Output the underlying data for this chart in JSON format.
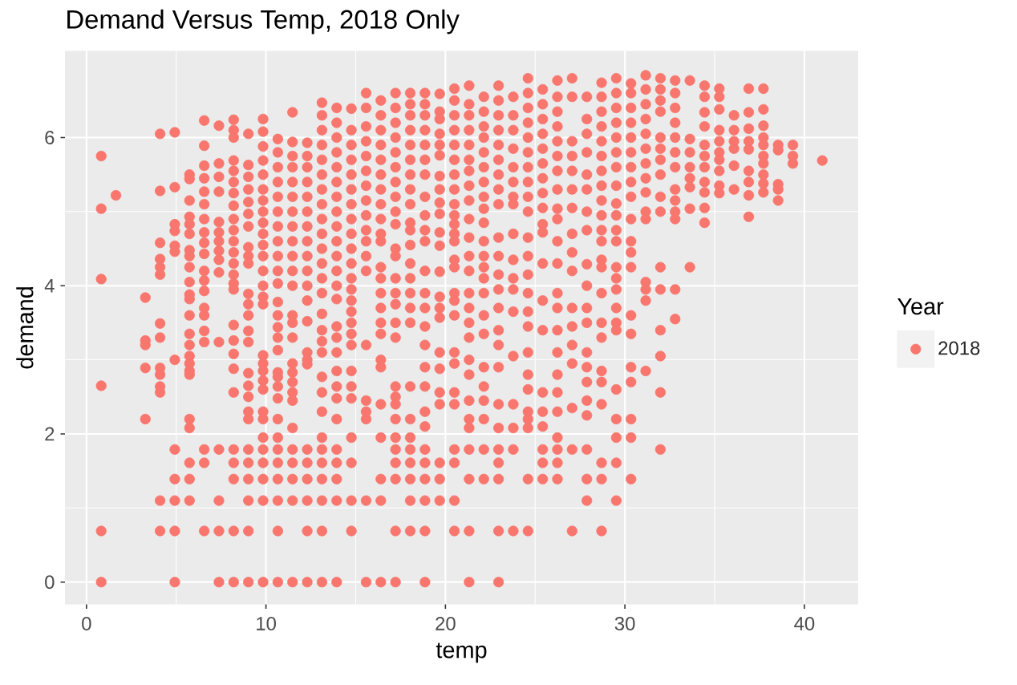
{
  "chart_data": {
    "type": "scatter",
    "title": "Demand Versus Temp, 2018 Only",
    "xlabel": "temp",
    "ylabel": "demand",
    "legend_title": "Year",
    "xlim": [
      -1.2,
      43.0
    ],
    "ylim": [
      -0.3,
      7.17
    ],
    "xticks": [
      0,
      10,
      20,
      30,
      40
    ],
    "yticks": [
      0,
      2,
      4,
      6
    ],
    "grid": true,
    "legend": "right",
    "marker": "circle",
    "x": [
      0.82,
      0.82,
      0.82,
      0.82,
      0.82,
      0.82,
      1.64,
      3.28,
      3.28,
      3.28,
      3.28,
      3.28,
      4.1,
      4.1,
      4.1,
      4.1,
      4.1,
      4.1,
      4.1,
      4.1,
      4.1,
      4.1,
      4.1,
      4.1,
      4.1,
      4.1,
      4.92,
      4.92,
      4.92,
      4.92,
      4.92,
      4.92,
      4.92,
      4.92,
      4.92,
      4.92,
      4.92,
      4.92,
      5.74,
      5.74,
      5.74,
      5.74,
      5.74,
      5.74,
      5.74,
      5.74,
      5.74,
      5.74,
      5.74,
      5.74,
      5.74,
      5.74,
      5.74,
      5.74,
      5.74,
      5.74,
      5.74,
      5.74,
      5.74,
      5.74,
      5.74,
      5.74,
      6.56,
      6.56,
      6.56,
      6.56,
      6.56,
      6.56,
      6.56,
      6.56,
      6.56,
      6.56,
      6.56,
      6.56,
      6.56,
      6.56,
      6.56,
      6.56,
      6.56,
      6.56,
      6.56,
      6.56,
      7.38,
      7.38,
      7.38,
      7.38,
      7.38,
      7.38,
      7.38,
      7.38,
      7.38,
      7.38,
      7.38,
      7.38,
      7.38,
      7.38,
      7.38,
      8.2,
      8.2,
      8.2,
      8.2,
      8.2,
      8.2,
      8.2,
      8.2,
      8.2,
      8.2,
      8.2,
      8.2,
      8.2,
      8.2,
      8.2,
      8.2,
      8.2,
      8.2,
      8.2,
      8.2,
      8.2,
      8.2,
      8.2,
      8.2,
      8.2,
      8.2,
      9.02,
      9.02,
      9.02,
      9.02,
      9.02,
      9.02,
      9.02,
      9.02,
      9.02,
      9.02,
      9.02,
      9.02,
      9.02,
      9.02,
      9.02,
      9.02,
      9.02,
      9.02,
      9.02,
      9.02,
      9.02,
      9.02,
      9.02,
      9.02,
      9.02,
      9.02,
      9.84,
      9.84,
      9.84,
      9.84,
      9.84,
      9.84,
      9.84,
      9.84,
      9.84,
      9.84,
      9.84,
      9.84,
      9.84,
      9.84,
      9.84,
      9.84,
      9.84,
      9.84,
      9.84,
      9.84,
      9.84,
      9.84,
      9.84,
      9.84,
      9.84,
      9.84,
      9.84,
      9.84,
      9.84,
      10.66,
      10.66,
      10.66,
      10.66,
      10.66,
      10.66,
      10.66,
      10.66,
      10.66,
      10.66,
      10.66,
      10.66,
      10.66,
      10.66,
      10.66,
      10.66,
      10.66,
      10.66,
      10.66,
      10.66,
      10.66,
      10.66,
      10.66,
      10.66,
      10.66,
      10.66,
      10.66,
      10.66,
      11.48,
      11.48,
      11.48,
      11.48,
      11.48,
      11.48,
      11.48,
      11.48,
      11.48,
      11.48,
      11.48,
      11.48,
      11.48,
      11.48,
      11.48,
      11.48,
      11.48,
      11.48,
      11.48,
      11.48,
      11.48,
      11.48,
      11.48,
      11.48,
      11.48,
      11.48,
      12.3,
      12.3,
      12.3,
      12.3,
      12.3,
      12.3,
      12.3,
      12.3,
      12.3,
      12.3,
      12.3,
      12.3,
      12.3,
      12.3,
      12.3,
      12.3,
      12.3,
      12.3,
      12.3,
      12.3,
      12.3,
      12.3,
      13.12,
      13.12,
      13.12,
      13.12,
      13.12,
      13.12,
      13.12,
      13.12,
      13.12,
      13.12,
      13.12,
      13.12,
      13.12,
      13.12,
      13.12,
      13.12,
      13.12,
      13.12,
      13.12,
      13.12,
      13.12,
      13.12,
      13.12,
      13.12,
      13.12,
      13.12,
      13.12,
      13.12,
      13.94,
      13.94,
      13.94,
      13.94,
      13.94,
      13.94,
      13.94,
      13.94,
      13.94,
      13.94,
      13.94,
      13.94,
      13.94,
      13.94,
      13.94,
      13.94,
      13.94,
      13.94,
      13.94,
      13.94,
      13.94,
      13.94,
      13.94,
      13.94,
      13.94,
      13.94,
      14.76,
      14.76,
      14.76,
      14.76,
      14.76,
      14.76,
      14.76,
      14.76,
      14.76,
      14.76,
      14.76,
      14.76,
      14.76,
      14.76,
      14.76,
      14.76,
      14.76,
      14.76,
      14.76,
      14.76,
      14.76,
      14.76,
      14.76,
      14.76,
      14.76,
      15.58,
      15.58,
      15.58,
      15.58,
      15.58,
      15.58,
      15.58,
      15.58,
      15.58,
      15.58,
      15.58,
      15.58,
      15.58,
      15.58,
      15.58,
      15.58,
      15.58,
      15.58,
      15.58,
      16.4,
      16.4,
      16.4,
      16.4,
      16.4,
      16.4,
      16.4,
      16.4,
      16.4,
      16.4,
      16.4,
      16.4,
      16.4,
      16.4,
      16.4,
      16.4,
      16.4,
      16.4,
      16.4,
      16.4,
      16.4,
      16.4,
      16.4,
      16.4,
      17.22,
      17.22,
      17.22,
      17.22,
      17.22,
      17.22,
      17.22,
      17.22,
      17.22,
      17.22,
      17.22,
      17.22,
      17.22,
      17.22,
      17.22,
      17.22,
      17.22,
      17.22,
      17.22,
      17.22,
      17.22,
      17.22,
      17.22,
      17.22,
      17.22,
      17.22,
      17.22,
      18.04,
      18.04,
      18.04,
      18.04,
      18.04,
      18.04,
      18.04,
      18.04,
      18.04,
      18.04,
      18.04,
      18.04,
      18.04,
      18.04,
      18.04,
      18.04,
      18.04,
      18.04,
      18.04,
      18.04,
      18.04,
      18.04,
      18.04,
      18.04,
      18.04,
      18.86,
      18.86,
      18.86,
      18.86,
      18.86,
      18.86,
      18.86,
      18.86,
      18.86,
      18.86,
      18.86,
      18.86,
      18.86,
      18.86,
      18.86,
      18.86,
      18.86,
      18.86,
      18.86,
      18.86,
      18.86,
      18.86,
      18.86,
      18.86,
      18.86,
      18.86,
      19.68,
      19.68,
      19.68,
      19.68,
      19.68,
      19.68,
      19.68,
      19.68,
      19.68,
      19.68,
      19.68,
      19.68,
      19.68,
      19.68,
      19.68,
      19.68,
      19.68,
      19.68,
      19.68,
      19.68,
      19.68,
      19.68,
      19.68,
      20.5,
      20.5,
      20.5,
      20.5,
      20.5,
      20.5,
      20.5,
      20.5,
      20.5,
      20.5,
      20.5,
      20.5,
      20.5,
      20.5,
      20.5,
      20.5,
      20.5,
      20.5,
      20.5,
      20.5,
      20.5,
      20.5,
      20.5,
      20.5,
      20.5,
      20.5,
      21.32,
      21.32,
      21.32,
      21.32,
      21.32,
      21.32,
      21.32,
      21.32,
      21.32,
      21.32,
      21.32,
      21.32,
      21.32,
      21.32,
      21.32,
      21.32,
      21.32,
      21.32,
      21.32,
      21.32,
      21.32,
      21.32,
      21.32,
      21.32,
      21.32,
      21.32,
      22.14,
      22.14,
      22.14,
      22.14,
      22.14,
      22.14,
      22.14,
      22.14,
      22.14,
      22.14,
      22.14,
      22.14,
      22.14,
      22.14,
      22.14,
      22.14,
      22.14,
      22.14,
      22.14,
      22.14,
      22.14,
      22.14,
      22.14,
      22.96,
      22.96,
      22.96,
      22.96,
      22.96,
      22.96,
      22.96,
      22.96,
      22.96,
      22.96,
      22.96,
      22.96,
      22.96,
      22.96,
      22.96,
      22.96,
      22.96,
      22.96,
      22.96,
      22.96,
      22.96,
      22.96,
      22.96,
      22.96,
      23.78,
      23.78,
      23.78,
      23.78,
      23.78,
      23.78,
      23.78,
      23.78,
      23.78,
      23.78,
      23.78,
      23.78,
      23.78,
      23.78,
      23.78,
      23.78,
      23.78,
      23.78,
      24.6,
      24.6,
      24.6,
      24.6,
      24.6,
      24.6,
      24.6,
      24.6,
      24.6,
      24.6,
      24.6,
      24.6,
      24.6,
      24.6,
      24.6,
      24.6,
      24.6,
      24.6,
      24.6,
      24.6,
      24.6,
      24.6,
      24.6,
      24.6,
      25.42,
      25.42,
      25.42,
      25.42,
      25.42,
      25.42,
      25.42,
      25.42,
      25.42,
      25.42,
      25.42,
      25.42,
      25.42,
      25.42,
      25.42,
      25.42,
      25.42,
      25.42,
      25.42,
      25.42,
      26.24,
      26.24,
      26.24,
      26.24,
      26.24,
      26.24,
      26.24,
      26.24,
      26.24,
      26.24,
      26.24,
      26.24,
      26.24,
      26.24,
      26.24,
      26.24,
      26.24,
      26.24,
      26.24,
      26.24,
      26.24,
      26.24,
      26.24,
      27.06,
      27.06,
      27.06,
      27.06,
      27.06,
      27.06,
      27.06,
      27.06,
      27.06,
      27.06,
      27.06,
      27.06,
      27.06,
      27.06,
      27.06,
      27.06,
      27.06,
      27.88,
      27.88,
      27.88,
      27.88,
      27.88,
      27.88,
      27.88,
      27.88,
      27.88,
      27.88,
      27.88,
      27.88,
      27.88,
      27.88,
      27.88,
      27.88,
      27.88,
      27.88,
      27.88,
      27.88,
      28.7,
      28.7,
      28.7,
      28.7,
      28.7,
      28.7,
      28.7,
      28.7,
      28.7,
      28.7,
      28.7,
      28.7,
      28.7,
      28.7,
      28.7,
      28.7,
      28.7,
      28.7,
      28.7,
      28.7,
      28.7,
      28.7,
      28.7,
      29.52,
      29.52,
      29.52,
      29.52,
      29.52,
      29.52,
      29.52,
      29.52,
      29.52,
      29.52,
      29.52,
      29.52,
      29.52,
      29.52,
      29.52,
      29.52,
      29.52,
      29.52,
      29.52,
      29.52,
      29.52,
      29.52,
      29.52,
      30.34,
      30.34,
      30.34,
      30.34,
      30.34,
      30.34,
      30.34,
      30.34,
      30.34,
      30.34,
      30.34,
      30.34,
      30.34,
      30.34,
      30.34,
      30.34,
      30.34,
      30.34,
      30.34,
      30.34,
      31.16,
      31.16,
      31.16,
      31.16,
      31.16,
      31.16,
      31.16,
      31.16,
      31.16,
      31.16,
      31.16,
      31.16,
      31.16,
      31.16,
      31.16,
      31.98,
      31.98,
      31.98,
      31.98,
      31.98,
      31.98,
      31.98,
      31.98,
      31.98,
      31.98,
      31.98,
      31.98,
      31.98,
      31.98,
      31.98,
      31.98,
      32.8,
      32.8,
      32.8,
      32.8,
      32.8,
      32.8,
      32.8,
      32.8,
      32.8,
      32.8,
      32.8,
      32.8,
      32.8,
      33.62,
      33.62,
      33.62,
      33.62,
      33.62,
      33.62,
      33.62,
      33.62,
      34.44,
      34.44,
      34.44,
      34.44,
      34.44,
      34.44,
      34.44,
      34.44,
      34.44,
      34.44,
      34.44,
      35.26,
      35.26,
      35.26,
      35.26,
      35.26,
      35.26,
      35.26,
      35.26,
      35.26,
      35.26,
      36.08,
      36.08,
      36.08,
      36.08,
      36.08,
      36.08,
      36.9,
      36.9,
      36.9,
      36.9,
      36.9,
      36.9,
      36.9,
      36.9,
      36.9,
      37.72,
      37.72,
      37.72,
      37.72,
      37.72,
      37.72,
      37.72,
      37.72,
      37.72,
      37.72,
      38.54,
      38.54,
      38.54,
      38.54,
      38.54,
      39.36,
      39.36,
      39.36,
      41.0
    ],
    "series": [
      {
        "name": "2018",
        "color": "#f8766d",
        "values": [
          5.75,
          5.04,
          4.09,
          2.65,
          0.69,
          0,
          5.22,
          3.84,
          3.26,
          3.2,
          2.89,
          2.2,
          6.05,
          5.28,
          4.58,
          4.36,
          4.25,
          4.15,
          3.49,
          3.3,
          2.89,
          2.8,
          2.64,
          2.56,
          1.1,
          0.69,
          6.07,
          5.33,
          4.83,
          4.74,
          4.54,
          4.46,
          3.0,
          1.79,
          1.39,
          1.1,
          0.69,
          0,
          5.5,
          5.44,
          5.15,
          4.93,
          4.83,
          4.7,
          4.48,
          4.4,
          4.25,
          4.05,
          3.88,
          3.82,
          3.6,
          3.35,
          3.2,
          3.05,
          2.95,
          2.85,
          2.8,
          2.2,
          2.08,
          1.61,
          1.39,
          1.1,
          6.23,
          5.89,
          5.62,
          5.45,
          5.27,
          5.1,
          4.9,
          4.72,
          4.58,
          4.43,
          4.2,
          4.07,
          3.93,
          3.7,
          3.6,
          3.39,
          3.24,
          1.79,
          1.61,
          0.69,
          6.16,
          5.65,
          5.47,
          5.27,
          4.86,
          4.72,
          4.6,
          4.47,
          4.35,
          4.18,
          3.24,
          1.79,
          1.1,
          0.69,
          0,
          6.24,
          6.1,
          6.0,
          5.69,
          5.55,
          5.4,
          5.25,
          5.08,
          4.9,
          4.75,
          4.6,
          4.45,
          4.3,
          4.15,
          4.03,
          3.95,
          3.47,
          3.26,
          3.08,
          2.88,
          2.56,
          1.79,
          1.61,
          1.39,
          0.69,
          0,
          6.05,
          5.63,
          5.47,
          5.3,
          5.13,
          4.97,
          4.8,
          4.52,
          4.4,
          4.3,
          3.89,
          3.75,
          3.6,
          3.39,
          3.24,
          2.82,
          2.65,
          2.5,
          2.3,
          2.2,
          1.79,
          1.61,
          1.39,
          1.1,
          0.69,
          0,
          6.25,
          6.08,
          5.88,
          5.69,
          5.5,
          5.3,
          5.15,
          5.0,
          4.85,
          4.7,
          4.55,
          4.4,
          4.2,
          4.0,
          3.85,
          3.75,
          3.06,
          2.95,
          2.85,
          2.72,
          2.6,
          2.3,
          2.2,
          1.95,
          1.79,
          1.61,
          1.39,
          1.1,
          0,
          5.98,
          5.8,
          5.6,
          5.4,
          5.2,
          5.0,
          4.8,
          4.6,
          4.4,
          4.2,
          4.03,
          3.78,
          3.6,
          3.44,
          3.3,
          3.13,
          2.83,
          2.77,
          2.64,
          2.48,
          2.2,
          1.95,
          1.79,
          1.61,
          1.39,
          1.1,
          0.69,
          0,
          6.34,
          5.94,
          5.75,
          5.6,
          5.4,
          5.2,
          5.0,
          4.8,
          4.6,
          4.4,
          4.2,
          4.0,
          3.6,
          3.5,
          3.3,
          2.95,
          2.83,
          2.7,
          2.56,
          2.45,
          2.08,
          1.79,
          1.61,
          1.39,
          1.1,
          0,
          5.93,
          5.75,
          5.6,
          5.4,
          5.2,
          5.0,
          4.8,
          4.6,
          4.4,
          4.2,
          4.0,
          3.8,
          3.52,
          3.1,
          3.0,
          2.94,
          1.79,
          1.61,
          1.39,
          1.1,
          0.69,
          0,
          6.47,
          6.3,
          6.1,
          5.9,
          5.7,
          5.5,
          5.3,
          5.1,
          4.9,
          4.7,
          4.5,
          4.3,
          4.1,
          3.9,
          3.62,
          3.4,
          3.25,
          3.1,
          2.77,
          2.56,
          2.3,
          1.95,
          1.79,
          1.61,
          1.39,
          1.1,
          0.69,
          0,
          6.4,
          6.2,
          6.0,
          5.8,
          5.6,
          5.4,
          5.2,
          5.0,
          4.8,
          4.6,
          4.4,
          4.2,
          4.0,
          3.82,
          3.45,
          3.3,
          3.1,
          2.85,
          2.64,
          2.48,
          2.2,
          1.79,
          1.61,
          1.39,
          1.1,
          0,
          6.39,
          6.1,
          5.9,
          5.7,
          5.5,
          5.3,
          5.1,
          4.9,
          4.7,
          4.5,
          4.3,
          4.1,
          3.95,
          3.8,
          3.65,
          3.5,
          3.35,
          3.2,
          2.85,
          2.64,
          2.48,
          1.95,
          1.61,
          1.1,
          0.69,
          6.6,
          6.4,
          6.15,
          5.95,
          5.75,
          5.55,
          5.35,
          5.15,
          4.95,
          4.75,
          4.6,
          4.4,
          4.2,
          3.2,
          2.45,
          2.3,
          2.2,
          1.1,
          0,
          6.5,
          6.3,
          6.1,
          5.9,
          5.7,
          5.5,
          5.3,
          5.1,
          4.9,
          4.7,
          4.6,
          4.25,
          4.1,
          3.9,
          3.7,
          3.5,
          3.35,
          3.0,
          2.9,
          2.4,
          1.95,
          1.39,
          1.1,
          0,
          6.6,
          6.4,
          6.2,
          6.0,
          5.8,
          5.6,
          5.4,
          5.2,
          5.0,
          4.83,
          4.5,
          4.4,
          4.1,
          3.9,
          3.75,
          3.5,
          3.3,
          2.64,
          2.5,
          2.4,
          2.2,
          1.95,
          1.79,
          1.61,
          1.39,
          0.69,
          0,
          6.6,
          6.45,
          6.3,
          6.1,
          5.9,
          5.7,
          5.5,
          5.3,
          5.1,
          4.85,
          4.75,
          4.55,
          4.3,
          4.1,
          3.9,
          3.7,
          3.5,
          2.64,
          2.2,
          1.95,
          1.79,
          1.61,
          1.39,
          1.1,
          0.69,
          6.6,
          6.45,
          6.3,
          6.1,
          5.9,
          5.7,
          5.5,
          5.2,
          4.95,
          4.75,
          4.6,
          4.2,
          3.9,
          3.7,
          3.45,
          3.2,
          2.9,
          2.64,
          2.3,
          2.1,
          1.79,
          1.61,
          1.39,
          1.1,
          0.69,
          0,
          6.59,
          6.35,
          6.25,
          6.05,
          5.9,
          5.76,
          5.48,
          5.3,
          5.12,
          4.97,
          4.72,
          4.54,
          4.19,
          3.85,
          3.7,
          3.57,
          3.1,
          2.88,
          2.56,
          2.4,
          1.61,
          1.39,
          1.1,
          6.66,
          6.5,
          6.3,
          6.1,
          5.9,
          5.7,
          5.5,
          5.3,
          5.1,
          4.95,
          4.83,
          4.7,
          4.6,
          4.35,
          4.25,
          3.9,
          3.8,
          3.6,
          3.1,
          2.95,
          2.56,
          2.4,
          1.79,
          1.61,
          1.1,
          0.69,
          6.7,
          6.45,
          6.3,
          6.1,
          5.9,
          5.7,
          5.55,
          5.35,
          5.15,
          4.9,
          4.65,
          4.4,
          4.2,
          3.9,
          3.7,
          3.5,
          3.3,
          3.0,
          2.8,
          2.45,
          2.2,
          2.08,
          1.79,
          1.39,
          0.69,
          0,
          6.55,
          6.35,
          6.15,
          6.0,
          5.8,
          5.6,
          5.4,
          5.2,
          5.04,
          4.85,
          4.6,
          4.4,
          4.25,
          4.1,
          3.9,
          3.6,
          3.35,
          2.9,
          2.64,
          2.45,
          2.2,
          1.79,
          1.39,
          6.7,
          6.5,
          6.3,
          6.1,
          5.9,
          5.7,
          5.5,
          5.3,
          5.1,
          4.65,
          4.4,
          4.15,
          3.95,
          3.7,
          3.4,
          3.2,
          2.9,
          2.4,
          2.08,
          1.79,
          1.61,
          1.39,
          0.69,
          0,
          6.55,
          6.3,
          6.1,
          5.85,
          5.6,
          5.4,
          5.2,
          5.1,
          4.7,
          4.35,
          4.1,
          3.95,
          3.65,
          3.05,
          2.4,
          2.08,
          1.79,
          0.69,
          6.8,
          6.6,
          6.4,
          6.2,
          6.0,
          5.8,
          5.6,
          5.4,
          5.2,
          5.0,
          4.65,
          4.4,
          4.15,
          3.9,
          3.65,
          3.45,
          3.1,
          2.8,
          2.6,
          2.3,
          2.2,
          2.08,
          1.39,
          0.69,
          6.65,
          6.45,
          6.25,
          6.05,
          5.85,
          5.65,
          5.45,
          5.25,
          5.05,
          4.83,
          4.72,
          4.3,
          3.8,
          3.4,
          2.56,
          2.3,
          2.1,
          1.79,
          1.61,
          1.39,
          6.77,
          6.55,
          6.35,
          6.15,
          5.95,
          5.75,
          5.55,
          5.3,
          5.04,
          4.9,
          4.6,
          4.3,
          3.9,
          3.7,
          3.4,
          3.1,
          2.8,
          2.56,
          2.3,
          1.95,
          1.79,
          1.61,
          1.39,
          6.8,
          6.55,
          5.95,
          5.75,
          5.55,
          5.3,
          5.05,
          4.7,
          4.45,
          4.2,
          3.7,
          3.45,
          3.2,
          2.95,
          2.35,
          1.79,
          0.69,
          6.55,
          6.25,
          6.05,
          5.8,
          5.5,
          5.3,
          5.0,
          4.75,
          4.29,
          4.0,
          3.7,
          3.5,
          3.1,
          2.9,
          2.7,
          2.45,
          2.25,
          1.79,
          1.39,
          1.1,
          6.74,
          6.55,
          6.35,
          6.15,
          5.95,
          5.75,
          5.55,
          5.35,
          5.15,
          4.95,
          4.75,
          4.6,
          4.35,
          4.25,
          3.9,
          3.5,
          3.3,
          2.85,
          2.7,
          2.4,
          1.61,
          1.39,
          0.69,
          6.8,
          6.6,
          6.4,
          6.2,
          6.0,
          5.8,
          5.6,
          5.35,
          5.11,
          4.95,
          4.75,
          4.6,
          4.25,
          4.1,
          3.95,
          3.7,
          3.5,
          3.4,
          2.6,
          2.2,
          1.95,
          1.61,
          1.1,
          6.73,
          6.6,
          6.4,
          6.2,
          6.0,
          5.8,
          5.6,
          5.4,
          5.2,
          4.9,
          4.6,
          4.45,
          4.25,
          3.6,
          3.35,
          2.9,
          2.7,
          2.2,
          1.95,
          1.39,
          6.84,
          6.65,
          6.45,
          6.25,
          6.05,
          5.85,
          5.65,
          5.45,
          5.26,
          5.0,
          4.9,
          4.05,
          3.95,
          3.8,
          2.85,
          6.8,
          6.65,
          6.5,
          6.35,
          6.0,
          5.85,
          5.7,
          5.5,
          5.2,
          5.0,
          4.25,
          3.95,
          3.4,
          3.05,
          2.56,
          1.79,
          6.77,
          6.6,
          6.4,
          6.2,
          6.0,
          5.8,
          5.6,
          5.3,
          5.15,
          5.0,
          4.9,
          3.95,
          3.55,
          6.77,
          5.98,
          5.8,
          5.6,
          5.45,
          5.33,
          5.04,
          4.25,
          6.7,
          6.55,
          6.34,
          6.15,
          5.9,
          5.75,
          5.6,
          5.4,
          5.26,
          5.05,
          4.85,
          6.66,
          6.55,
          6.38,
          6.1,
          5.95,
          5.8,
          5.7,
          5.55,
          5.35,
          5.25,
          6.3,
          6.1,
          5.95,
          5.85,
          5.62,
          5.3,
          6.66,
          6.34,
          6.12,
          5.95,
          5.84,
          5.55,
          5.4,
          5.22,
          4.93,
          6.66,
          6.38,
          6.16,
          6.0,
          5.9,
          5.75,
          5.65,
          5.5,
          5.38,
          5.26,
          5.9,
          5.83,
          5.37,
          5.3,
          5.15,
          5.9,
          5.75,
          5.65,
          5.69
        ]
      }
    ]
  }
}
